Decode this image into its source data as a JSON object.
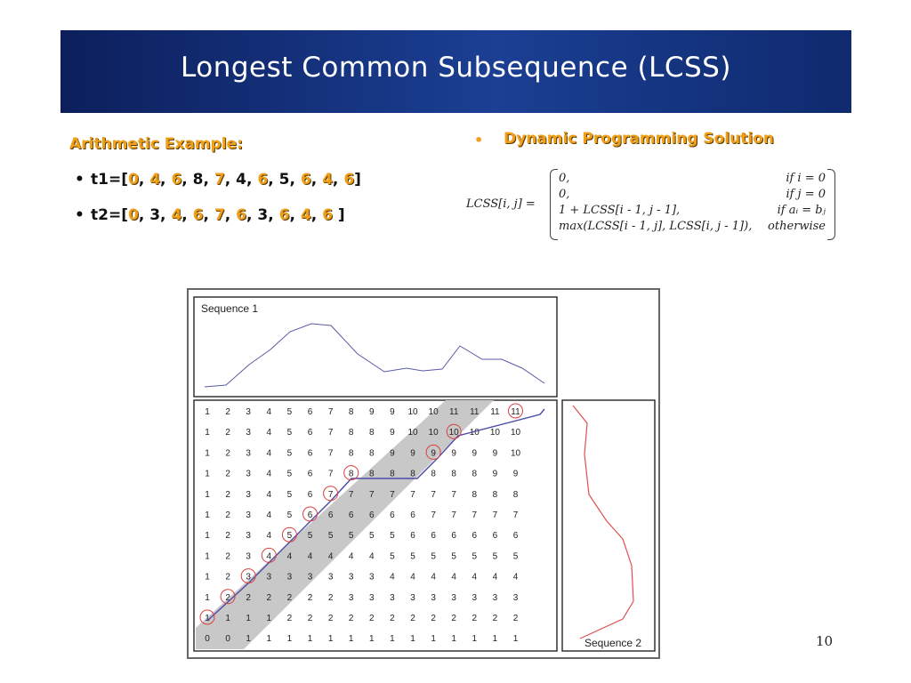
{
  "title": "Longest Common Subsequence (LCSS)",
  "left": {
    "heading": "Arithmetic Example:",
    "t1_label": "t1=[",
    "t1_close": "]",
    "t1_values": [
      "0",
      "4",
      "6",
      "8",
      "7",
      "4",
      "6",
      "5",
      "6",
      "4",
      "6"
    ],
    "t1_colors": [
      "o",
      "o",
      "o",
      "b",
      "o",
      "b",
      "o",
      "b",
      "o",
      "o",
      "o"
    ],
    "t2_label": "t2=[",
    "t2_close": " ]",
    "t2_values": [
      "0",
      "3",
      "4",
      "6",
      "7",
      "6",
      "3",
      "6",
      "4",
      "6"
    ],
    "t2_colors": [
      "o",
      "b",
      "o",
      "o",
      "o",
      "o",
      "b",
      "o",
      "o",
      "o"
    ],
    "bullet": "•"
  },
  "right": {
    "bullet": "•",
    "heading": "Dynamic Programming Solution",
    "formula": {
      "lhs": "LCSS[i, j] =",
      "rows": [
        {
          "expr": "0,",
          "cond": "if  i = 0"
        },
        {
          "expr": "0,",
          "cond": "if  j = 0"
        },
        {
          "expr": "1 + LCSS[i - 1, j - 1],",
          "cond": "if  aᵢ = bⱼ"
        },
        {
          "expr": "max(LCSS[i - 1, j], LCSS[i, j - 1]),",
          "cond": "otherwise"
        }
      ]
    }
  },
  "figure": {
    "seq1_label": "Sequence 1",
    "seq2_label": "Sequence 2",
    "grid": [
      [
        1,
        2,
        3,
        4,
        5,
        6,
        7,
        8,
        9,
        9,
        10,
        10,
        11,
        11,
        11,
        11
      ],
      [
        1,
        2,
        3,
        4,
        5,
        6,
        7,
        8,
        8,
        9,
        10,
        10,
        10,
        10,
        10,
        10
      ],
      [
        1,
        2,
        3,
        4,
        5,
        6,
        7,
        8,
        8,
        9,
        9,
        9,
        9,
        9,
        9,
        10
      ],
      [
        1,
        2,
        3,
        4,
        5,
        6,
        7,
        8,
        8,
        8,
        8,
        8,
        8,
        8,
        9,
        9
      ],
      [
        1,
        2,
        3,
        4,
        5,
        6,
        7,
        7,
        7,
        7,
        7,
        7,
        7,
        8,
        8,
        8
      ],
      [
        1,
        2,
        3,
        4,
        5,
        6,
        6,
        6,
        6,
        6,
        6,
        7,
        7,
        7,
        7,
        7
      ],
      [
        1,
        2,
        3,
        4,
        5,
        5,
        5,
        5,
        5,
        5,
        6,
        6,
        6,
        6,
        6,
        6
      ],
      [
        1,
        2,
        3,
        4,
        4,
        4,
        4,
        4,
        4,
        5,
        5,
        5,
        5,
        5,
        5,
        5
      ],
      [
        1,
        2,
        3,
        3,
        3,
        3,
        3,
        3,
        3,
        4,
        4,
        4,
        4,
        4,
        4,
        4
      ],
      [
        1,
        2,
        2,
        2,
        2,
        2,
        2,
        3,
        3,
        3,
        3,
        3,
        3,
        3,
        3,
        3
      ],
      [
        1,
        1,
        1,
        1,
        2,
        2,
        2,
        2,
        2,
        2,
        2,
        2,
        2,
        2,
        2,
        2
      ],
      [
        0,
        0,
        1,
        1,
        1,
        1,
        1,
        1,
        1,
        1,
        1,
        1,
        1,
        1,
        1,
        1
      ]
    ]
  },
  "page_number": "10"
}
